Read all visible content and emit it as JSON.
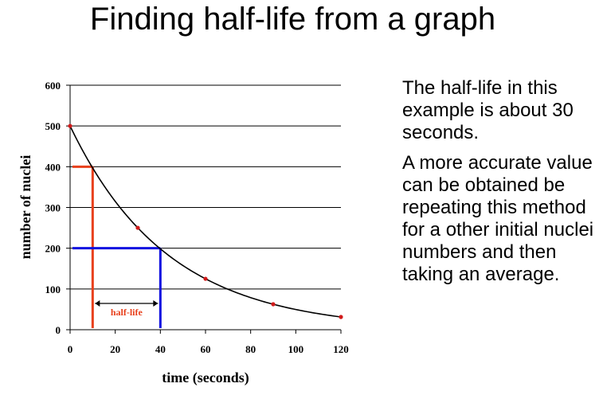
{
  "slide": {
    "title": "Finding half-life from a graph",
    "paragraphs": [
      "The half-life in this example is about 30 seconds.",
      "A more accurate value can be obtained be repeating this method for a other initial nuclei numbers and then taking an average."
    ]
  },
  "chart_data": {
    "type": "scatter",
    "xlabel": "time (seconds)",
    "ylabel": "number of nuclei",
    "xlim": [
      0,
      120
    ],
    "ylim": [
      0,
      600
    ],
    "x_ticks": [
      0,
      20,
      40,
      60,
      80,
      100,
      120
    ],
    "y_ticks": [
      0,
      100,
      200,
      300,
      400,
      500,
      600
    ],
    "grid": "horizontal",
    "series": [
      {
        "x": [
          0,
          30,
          60,
          90,
          120
        ],
        "y": [
          500,
          250,
          125,
          62.5,
          31.25
        ],
        "trend": "exponential decay curve"
      }
    ],
    "annotations": [
      {
        "text": "half-life",
        "from_x": 10,
        "to_x": 40
      }
    ],
    "guide_lines": [
      {
        "color": "#e8401c",
        "y": 400,
        "x": 10
      },
      {
        "color": "#1010e0",
        "y": 200,
        "x": 40
      }
    ],
    "colors": {
      "point": "#d11a1a",
      "curve": "#000000",
      "gridline": "#000000",
      "half_life_label": "#e8401c"
    }
  }
}
